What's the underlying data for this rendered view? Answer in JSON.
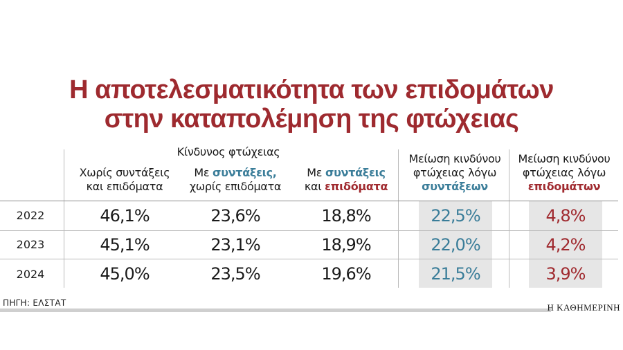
{
  "title_line1": "Η αποτελεσματικότητα των επιδομάτων",
  "title_line2": "στην καταπολέμηση της φτώχειας",
  "group_header": "Κίνδυνος φτώχειας",
  "columns": {
    "c1_line1": "Χωρίς συντάξεις",
    "c1_line2": "και επιδόματα",
    "c2_line1_a": "Με ",
    "c2_line1_b": "συντάξεις,",
    "c2_line2": "χωρίς επιδόματα",
    "c3_line1_a": "Με ",
    "c3_line1_b": "συντάξεις",
    "c3_line2_a": "και ",
    "c3_line2_b": "επιδόματα",
    "c4_line1": "Μείωση κινδύνου",
    "c4_line2": "φτώχειας λόγω",
    "c4_line3": "συντάξεων",
    "c5_line1": "Μείωση κινδύνου",
    "c5_line2": "φτώχειας λόγω",
    "c5_line3": "επιδομάτων"
  },
  "colors": {
    "title": "#9e2a2f",
    "blue": "#3a7d99",
    "red": "#a02a2f",
    "shade": "#e6e6e6"
  },
  "chart_data": {
    "type": "table",
    "rows": [
      "2022",
      "2023",
      "2024"
    ],
    "cells": [
      [
        "46,1%",
        "23,6%",
        "18,8%",
        "22,5%",
        "4,8%"
      ],
      [
        "45,1%",
        "23,1%",
        "18,9%",
        "22,0%",
        "4,2%"
      ],
      [
        "45,0%",
        "23,5%",
        "19,6%",
        "21,5%",
        "3,9%"
      ]
    ]
  },
  "source": "ΠΗΓΗ: ΕΛΣΤΑΤ",
  "brand": "Η ΚΑΘΗΜΕΡΙΝΗ"
}
